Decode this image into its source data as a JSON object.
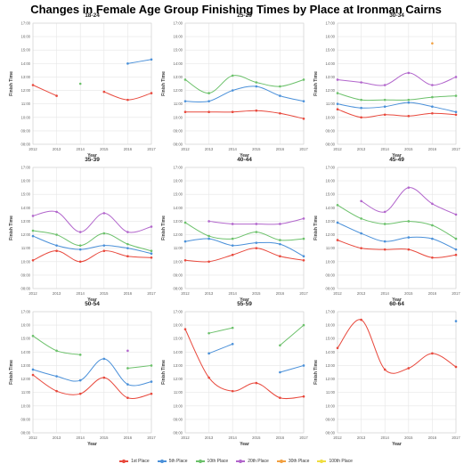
{
  "title": "Changes in Female Age Group Finishing Times by Place at Ironman Cairns",
  "colors": {
    "1st Place": "#e8483c",
    "5th Place": "#4a90d9",
    "10th Place": "#6cc16b",
    "20th Place": "#b266cc",
    "30th Place": "#f2a040",
    "100th Place": "#f0dd40"
  },
  "legend": [
    "1st Place",
    "5th Place",
    "10th Place",
    "20th Place",
    "30th Place",
    "100th Place"
  ],
  "chart_data": [
    {
      "type": "line",
      "title": "18-24",
      "xlabel": "Year",
      "ylabel": "Finish Time",
      "x": [
        2012,
        2013,
        2014,
        2015,
        2016,
        2017
      ],
      "yticks": [
        "08:00",
        "09:00",
        "10:00",
        "11:00",
        "12:00",
        "13:00",
        "14:00",
        "15:00",
        "16:00",
        "17:00"
      ],
      "ylim": [
        8,
        17
      ],
      "series": [
        {
          "name": "1st Place",
          "values": [
            12.4,
            11.6,
            null,
            11.9,
            11.3,
            11.8
          ]
        },
        {
          "name": "5th Place",
          "values": [
            null,
            null,
            null,
            null,
            14.0,
            14.3
          ]
        },
        {
          "name": "10th Place",
          "values": [
            null,
            null,
            12.5,
            null,
            null,
            null
          ]
        }
      ]
    },
    {
      "type": "line",
      "title": "25-29",
      "xlabel": "Year",
      "ylabel": "Finish Time",
      "x": [
        2012,
        2013,
        2014,
        2015,
        2016,
        2017
      ],
      "yticks": [
        "08:00",
        "09:00",
        "10:00",
        "11:00",
        "12:00",
        "13:00",
        "14:00",
        "15:00",
        "16:00",
        "17:00"
      ],
      "ylim": [
        8,
        17
      ],
      "series": [
        {
          "name": "1st Place",
          "values": [
            10.4,
            10.4,
            10.4,
            10.5,
            10.3,
            9.9
          ]
        },
        {
          "name": "5th Place",
          "values": [
            11.2,
            11.2,
            12.0,
            12.3,
            11.6,
            11.2
          ]
        },
        {
          "name": "10th Place",
          "values": [
            12.8,
            11.8,
            13.1,
            12.6,
            12.3,
            12.8
          ]
        }
      ]
    },
    {
      "type": "line",
      "title": "30-34",
      "xlabel": "Year",
      "ylabel": "Finish Time",
      "x": [
        2012,
        2013,
        2014,
        2015,
        2016,
        2017
      ],
      "yticks": [
        "08:00",
        "09:00",
        "10:00",
        "11:00",
        "12:00",
        "13:00",
        "14:00",
        "15:00",
        "16:00",
        "17:00"
      ],
      "ylim": [
        8,
        17
      ],
      "series": [
        {
          "name": "1st Place",
          "values": [
            10.6,
            10.0,
            10.2,
            10.1,
            10.3,
            10.2
          ]
        },
        {
          "name": "5th Place",
          "values": [
            11.0,
            10.7,
            10.8,
            11.1,
            10.8,
            10.4
          ]
        },
        {
          "name": "10th Place",
          "values": [
            11.8,
            11.3,
            11.3,
            11.3,
            11.5,
            11.6
          ]
        },
        {
          "name": "20th Place",
          "values": [
            12.8,
            12.6,
            12.4,
            13.3,
            12.4,
            13.0
          ]
        },
        {
          "name": "30th Place",
          "values": [
            null,
            null,
            null,
            null,
            15.5,
            null
          ]
        }
      ]
    },
    {
      "type": "line",
      "title": "35-39",
      "xlabel": "Year",
      "ylabel": "Finish Time",
      "x": [
        2012,
        2013,
        2014,
        2015,
        2016,
        2017
      ],
      "yticks": [
        "08:00",
        "09:00",
        "10:00",
        "11:00",
        "12:00",
        "13:00",
        "14:00",
        "15:00",
        "16:00",
        "17:00"
      ],
      "ylim": [
        8,
        17
      ],
      "series": [
        {
          "name": "1st Place",
          "values": [
            10.1,
            10.8,
            10.0,
            10.8,
            10.4,
            10.3
          ]
        },
        {
          "name": "5th Place",
          "values": [
            11.9,
            11.2,
            10.9,
            11.2,
            11.0,
            10.6
          ]
        },
        {
          "name": "10th Place",
          "values": [
            12.3,
            12.0,
            11.2,
            12.1,
            11.3,
            10.8
          ]
        },
        {
          "name": "20th Place",
          "values": [
            13.4,
            13.7,
            12.2,
            13.6,
            12.2,
            12.6
          ]
        }
      ]
    },
    {
      "type": "line",
      "title": "40-44",
      "xlabel": "Year",
      "ylabel": "Finish Time",
      "x": [
        2012,
        2013,
        2014,
        2015,
        2016,
        2017
      ],
      "yticks": [
        "08:00",
        "09:00",
        "10:00",
        "11:00",
        "12:00",
        "13:00",
        "14:00",
        "15:00",
        "16:00",
        "17:00"
      ],
      "ylim": [
        8,
        17
      ],
      "series": [
        {
          "name": "1st Place",
          "values": [
            10.1,
            10.0,
            10.5,
            11.0,
            10.4,
            10.1
          ]
        },
        {
          "name": "5th Place",
          "values": [
            11.5,
            11.7,
            11.2,
            11.4,
            11.3,
            10.4
          ]
        },
        {
          "name": "10th Place",
          "values": [
            12.9,
            11.9,
            11.7,
            12.2,
            11.6,
            11.7
          ]
        },
        {
          "name": "20th Place",
          "values": [
            null,
            13.0,
            12.8,
            12.8,
            12.8,
            13.2
          ]
        }
      ]
    },
    {
      "type": "line",
      "title": "45-49",
      "xlabel": "Year",
      "ylabel": "Finish Time",
      "x": [
        2012,
        2013,
        2014,
        2015,
        2016,
        2017
      ],
      "yticks": [
        "08:00",
        "09:00",
        "10:00",
        "11:00",
        "12:00",
        "13:00",
        "14:00",
        "15:00",
        "16:00",
        "17:00"
      ],
      "ylim": [
        8,
        17
      ],
      "series": [
        {
          "name": "1st Place",
          "values": [
            11.6,
            11.0,
            10.9,
            10.9,
            10.3,
            10.5
          ]
        },
        {
          "name": "5th Place",
          "values": [
            12.9,
            12.1,
            11.5,
            11.8,
            11.7,
            10.9
          ]
        },
        {
          "name": "10th Place",
          "values": [
            14.2,
            13.2,
            12.8,
            13.0,
            12.7,
            11.7
          ]
        },
        {
          "name": "20th Place",
          "values": [
            null,
            14.5,
            13.7,
            15.5,
            14.3,
            13.5
          ]
        }
      ]
    },
    {
      "type": "line",
      "title": "50-54",
      "xlabel": "Year",
      "ylabel": "Finish Time",
      "x": [
        2012,
        2013,
        2014,
        2015,
        2016,
        2017
      ],
      "yticks": [
        "08:00",
        "09:00",
        "10:00",
        "11:00",
        "12:00",
        "13:00",
        "14:00",
        "15:00",
        "16:00",
        "17:00"
      ],
      "ylim": [
        8,
        17
      ],
      "series": [
        {
          "name": "1st Place",
          "values": [
            12.3,
            11.1,
            10.9,
            12.1,
            10.6,
            10.9
          ]
        },
        {
          "name": "5th Place",
          "values": [
            12.7,
            12.2,
            11.9,
            13.5,
            11.6,
            11.8
          ]
        },
        {
          "name": "10th Place",
          "values": [
            15.2,
            14.1,
            13.8,
            null,
            12.8,
            13.0
          ]
        },
        {
          "name": "20th Place",
          "values": [
            null,
            null,
            null,
            null,
            14.1,
            null
          ]
        }
      ]
    },
    {
      "type": "line",
      "title": "55-59",
      "xlabel": "Year",
      "ylabel": "Finish Time",
      "x": [
        2012,
        2013,
        2014,
        2015,
        2016,
        2017
      ],
      "yticks": [
        "08:00",
        "09:00",
        "10:00",
        "11:00",
        "12:00",
        "13:00",
        "14:00",
        "15:00",
        "16:00",
        "17:00"
      ],
      "ylim": [
        8,
        17
      ],
      "series": [
        {
          "name": "1st Place",
          "values": [
            15.7,
            12.1,
            11.1,
            11.7,
            10.6,
            10.7
          ]
        },
        {
          "name": "5th Place",
          "values": [
            null,
            13.9,
            14.6,
            null,
            12.5,
            13.0
          ]
        },
        {
          "name": "10th Place",
          "values": [
            null,
            15.4,
            15.8,
            null,
            14.5,
            16.0
          ]
        }
      ]
    },
    {
      "type": "line",
      "title": "60-64",
      "xlabel": "Year",
      "ylabel": "Finish Time",
      "x": [
        2012,
        2013,
        2014,
        2015,
        2016,
        2017
      ],
      "yticks": [
        "08:00",
        "09:00",
        "10:00",
        "11:00",
        "12:00",
        "13:00",
        "14:00",
        "15:00",
        "16:00",
        "17:00"
      ],
      "ylim": [
        8,
        17
      ],
      "series": [
        {
          "name": "1st Place",
          "values": [
            14.3,
            16.4,
            12.7,
            12.8,
            13.9,
            12.9
          ]
        },
        {
          "name": "5th Place",
          "values": [
            null,
            null,
            null,
            null,
            null,
            16.3
          ]
        }
      ]
    }
  ]
}
